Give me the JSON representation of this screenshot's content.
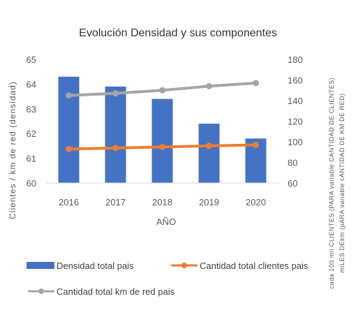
{
  "chart_data": {
    "type": "bar",
    "title": "Evolución Densidad y sus componentes",
    "xlabel": "AÑO",
    "ylabel": "Clientes / km de red (densidad)",
    "ylabel_right_lines": [
      "cada 100 mil CLIENTES (PARA variable CANTIDAD DE CLIENTES)",
      "miLES DEkm (pARA variable cANTIDAD DE KM DE RED)"
    ],
    "categories": [
      "2016",
      "2017",
      "2018",
      "2019",
      "2020"
    ],
    "ylim": [
      60,
      65
    ],
    "yticks": [
      "65",
      "64",
      "63",
      "62",
      "61",
      "60"
    ],
    "ylim_right": [
      60,
      180
    ],
    "yticks_right": [
      "180",
      "160",
      "140",
      "120",
      "100",
      "80",
      "60"
    ],
    "series": [
      {
        "name": "Densidad total pais",
        "type": "bar",
        "axis": "left",
        "color": "#4472C4",
        "values": [
          64.3,
          63.9,
          63.4,
          62.4,
          61.8
        ]
      },
      {
        "name": "Cantidad total clientes pais",
        "type": "line",
        "axis": "right",
        "color": "#ED7D31",
        "values": [
          93,
          94,
          95,
          96,
          97
        ]
      },
      {
        "name": "Cantidad total km de red pais",
        "type": "line",
        "axis": "right",
        "color": "#A5A5A5",
        "values": [
          145,
          147,
          150,
          154,
          157
        ]
      }
    ],
    "legend_position": "bottom",
    "grid": false
  }
}
